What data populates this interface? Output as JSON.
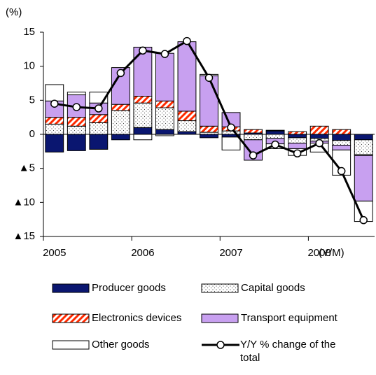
{
  "chart_data": {
    "type": "bar",
    "stacked": true,
    "y_label": "(%)",
    "x_label": "(Y/M)",
    "categories": [
      "2005",
      null,
      null,
      null,
      "2006",
      null,
      null,
      null,
      "2007",
      null,
      null,
      null,
      "2008",
      null,
      null
    ],
    "ylim": [
      -15,
      15
    ],
    "yticks": [
      {
        "value": -15,
        "label": "▲15"
      },
      {
        "value": -10,
        "label": "▲10"
      },
      {
        "value": -5,
        "label": "▲5"
      },
      0,
      5,
      10,
      15
    ],
    "series": [
      {
        "name": "Producer goods",
        "color": "#0a1670",
        "values": [
          -2.6,
          -2.4,
          -2.2,
          -0.8,
          1.0,
          0.7,
          0.4,
          -0.5,
          -0.4,
          0.2,
          0.5,
          -0.5,
          -0.6,
          -0.9,
          -0.8
        ]
      },
      {
        "name": "Capital goods",
        "color": "#ffffff",
        "values": [
          1.5,
          1.2,
          1.7,
          3.5,
          3.6,
          3.2,
          1.6,
          0.3,
          0.5,
          -0.8,
          -0.6,
          -0.8,
          -0.4,
          -0.7,
          -2.2
        ]
      },
      {
        "name": "Electronics devices",
        "color": "#ff2a00",
        "values": [
          1.0,
          1.3,
          1.2,
          0.9,
          1.0,
          1.0,
          1.4,
          0.9,
          0.6,
          0.5,
          0.1,
          0.4,
          1.2,
          0.7,
          -0.1
        ]
      },
      {
        "name": "Transport equipment",
        "color": "#c8a0f0",
        "values": [
          2.4,
          3.3,
          1.7,
          5.4,
          7.2,
          7.0,
          10.2,
          7.4,
          2.1,
          -3.0,
          -0.8,
          -0.8,
          -0.3,
          -0.7,
          -6.7
        ]
      },
      {
        "name": "Other goods",
        "color": "#ffffff",
        "values": [
          2.4,
          0.4,
          1.6,
          0,
          -0.8,
          -0.2,
          0,
          0.2,
          -1.9,
          0,
          -0.7,
          -1.0,
          -1.3,
          -3.7,
          -3.0
        ]
      },
      {
        "name": "Y/Y % change of the total",
        "type": "line",
        "color": "#000000",
        "values": [
          4.5,
          4.0,
          3.8,
          9.0,
          12.3,
          11.8,
          13.7,
          8.3,
          1.0,
          -3.1,
          -1.5,
          -2.8,
          -1.3,
          -5.4,
          -12.6
        ]
      }
    ]
  }
}
